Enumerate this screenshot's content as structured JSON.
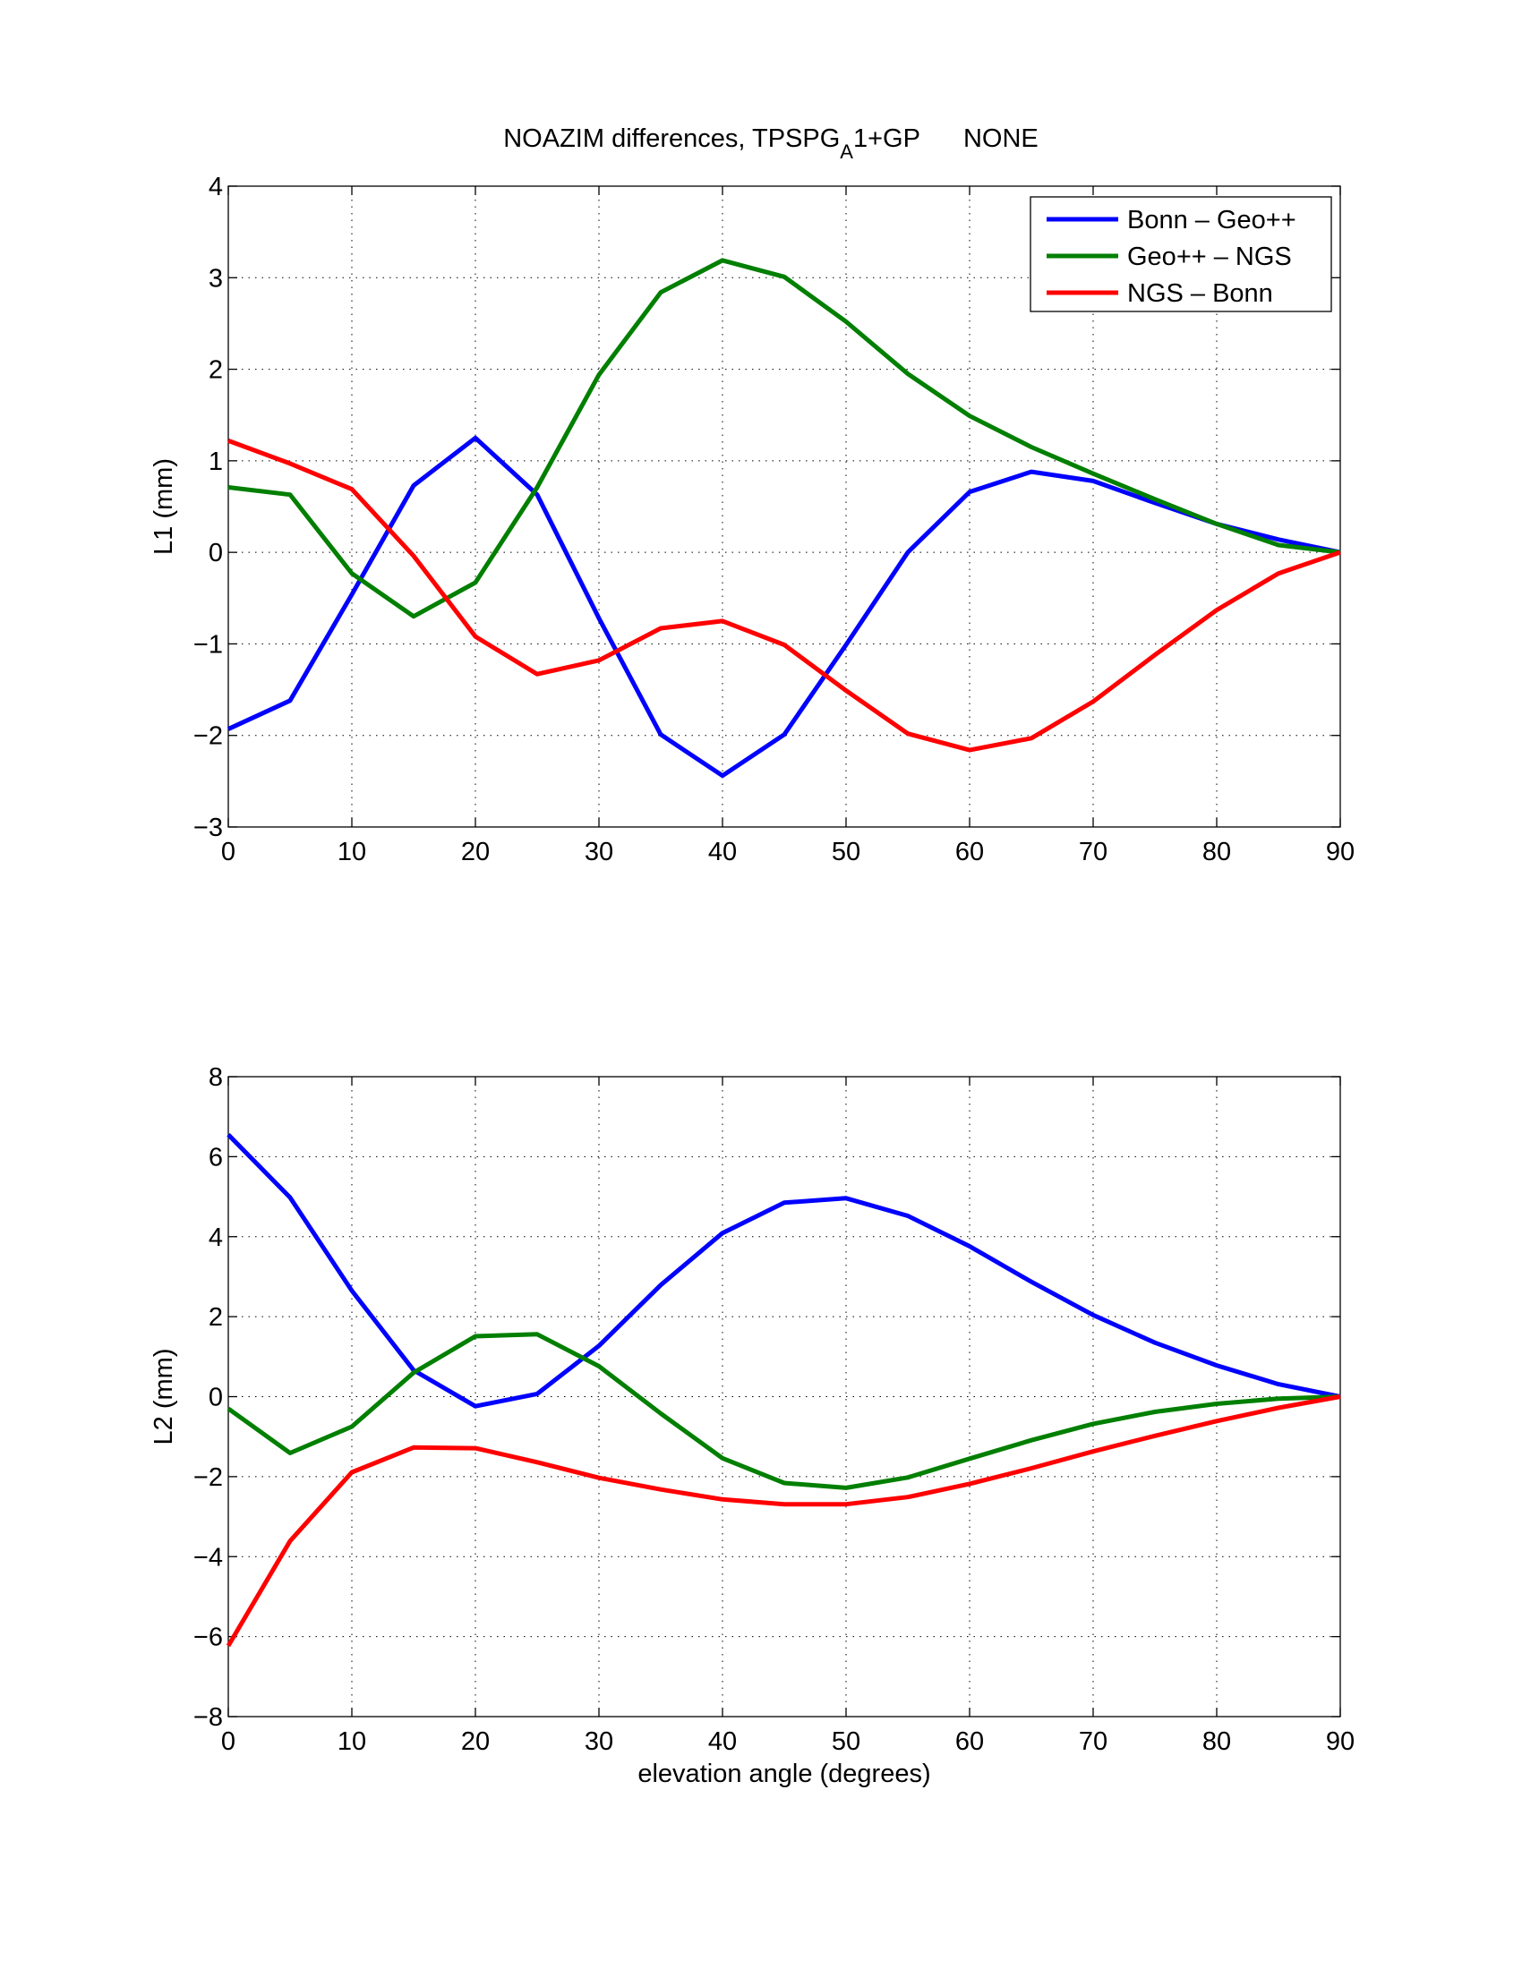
{
  "figure_title": {
    "main": "NOAZIM differences, TPSPG",
    "subscript": "A",
    "after_subscript": "1+GP",
    "suffix": "NONE"
  },
  "colors": {
    "Bonn – Geo++": "#0000ff",
    "Geo++ – NGS": "#007f00",
    "NGS – Bonn": "#ff0000"
  },
  "chart_data": [
    {
      "type": "line",
      "title": "",
      "xlabel": "",
      "ylabel": "L1 (mm)",
      "xlim": [
        0,
        90
      ],
      "ylim": [
        -3,
        4
      ],
      "xticks": [
        0,
        10,
        20,
        30,
        40,
        50,
        60,
        70,
        80,
        90
      ],
      "yticks": [
        -3,
        -2,
        -1,
        0,
        1,
        2,
        3,
        4
      ],
      "ytick_labels": [
        "−3",
        "−2",
        "−1",
        "0",
        "1",
        "2",
        "3",
        "4"
      ],
      "grid": true,
      "legend": "top-right",
      "x": [
        0,
        5,
        10,
        15,
        20,
        25,
        30,
        35,
        40,
        45,
        50,
        55,
        60,
        65,
        70,
        75,
        80,
        85,
        90
      ],
      "series": [
        {
          "name": "Bonn – Geo++",
          "color": "#0000ff",
          "values": [
            -1.93,
            -1.62,
            -0.46,
            0.73,
            1.25,
            0.63,
            -0.72,
            -1.99,
            -2.44,
            -1.99,
            -1.01,
            0.0,
            0.66,
            0.88,
            0.78,
            0.54,
            0.31,
            0.14,
            0.0
          ]
        },
        {
          "name": "Geo++ – NGS",
          "color": "#007f00",
          "values": [
            0.71,
            0.63,
            -0.23,
            -0.7,
            -0.33,
            0.71,
            1.94,
            2.84,
            3.19,
            3.01,
            2.52,
            1.95,
            1.49,
            1.15,
            0.86,
            0.58,
            0.31,
            0.08,
            0.0
          ]
        },
        {
          "name": "NGS – Bonn",
          "color": "#ff0000",
          "values": [
            1.22,
            0.97,
            0.69,
            -0.04,
            -0.92,
            -1.33,
            -1.18,
            -0.83,
            -0.75,
            -1.01,
            -1.51,
            -1.98,
            -2.16,
            -2.03,
            -1.63,
            -1.12,
            -0.63,
            -0.23,
            0.0
          ]
        }
      ]
    },
    {
      "type": "line",
      "title": "",
      "xlabel": "elevation angle (degrees)",
      "ylabel": "L2 (mm)",
      "xlim": [
        0,
        90
      ],
      "ylim": [
        -8,
        8
      ],
      "xticks": [
        0,
        10,
        20,
        30,
        40,
        50,
        60,
        70,
        80,
        90
      ],
      "yticks": [
        -8,
        -6,
        -4,
        -2,
        0,
        2,
        4,
        6,
        8
      ],
      "ytick_labels": [
        "−8",
        "−6",
        "−4",
        "−2",
        "0",
        "2",
        "4",
        "6",
        "8"
      ],
      "grid": true,
      "legend": "none",
      "x": [
        0,
        5,
        10,
        15,
        20,
        25,
        30,
        35,
        40,
        45,
        50,
        55,
        60,
        65,
        70,
        75,
        80,
        85,
        90
      ],
      "series": [
        {
          "name": "Bonn – Geo++",
          "color": "#0000ff",
          "values": [
            6.55,
            4.98,
            2.65,
            0.66,
            -0.24,
            0.07,
            1.27,
            2.79,
            4.09,
            4.85,
            4.96,
            4.52,
            3.76,
            2.87,
            2.04,
            1.35,
            0.78,
            0.31,
            0.0
          ]
        },
        {
          "name": "Geo++ – NGS",
          "color": "#007f00",
          "values": [
            -0.3,
            -1.41,
            -0.75,
            0.6,
            1.51,
            1.56,
            0.76,
            -0.42,
            -1.54,
            -2.16,
            -2.28,
            -2.02,
            -1.55,
            -1.09,
            -0.68,
            -0.38,
            -0.18,
            -0.05,
            0.0
          ]
        },
        {
          "name": "NGS – Bonn",
          "color": "#ff0000",
          "values": [
            -6.23,
            -3.61,
            -1.89,
            -1.27,
            -1.29,
            -1.64,
            -2.03,
            -2.32,
            -2.57,
            -2.69,
            -2.69,
            -2.51,
            -2.18,
            -1.79,
            -1.37,
            -0.98,
            -0.61,
            -0.28,
            0.0
          ]
        }
      ]
    }
  ]
}
